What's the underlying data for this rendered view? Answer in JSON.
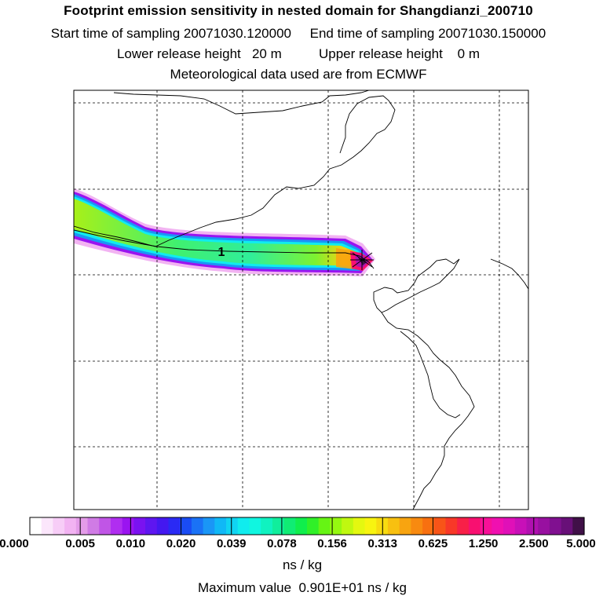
{
  "header": {
    "title": "Footprint emission sensitivity in nested domain for Shangdianzi_200710",
    "sampling_line": "Start time of sampling 20071030.120000     End time of sampling 20071030.150000",
    "release_line": "Lower release height   20 m          Upper release height    0 m",
    "met_line": "Meteorological data used are from ECMWF"
  },
  "map": {
    "release_marker_label": "1"
  },
  "colorbar": {
    "tick_labels": [
      "0.000",
      "0.005",
      "0.010",
      "0.020",
      "0.039",
      "0.078",
      "0.156",
      "0.313",
      "0.625",
      "1.250",
      "2.500",
      "5.000"
    ],
    "colors": [
      "#ffffff",
      "#fbe6fb",
      "#f7cdf7",
      "#f2b3f2",
      "#e49ce9",
      "#d07be5",
      "#c055e6",
      "#b02ef0",
      "#9a14f0",
      "#7a12f0",
      "#5e16f0",
      "#4418f0",
      "#2a2af4",
      "#1a4cf4",
      "#1a72f6",
      "#1a96f6",
      "#10b8f6",
      "#10d4f2",
      "#10ecee",
      "#10f6e0",
      "#10f2c0",
      "#10ee9c",
      "#10ec74",
      "#10ee4c",
      "#30f028",
      "#66f414",
      "#96f810",
      "#c0f810",
      "#e4f810",
      "#f8f410",
      "#f8dc10",
      "#f8c010",
      "#f8a410",
      "#f88a10",
      "#f87010",
      "#f85418",
      "#f83828",
      "#f82048",
      "#f81070",
      "#f81098",
      "#f010b0",
      "#e010b8",
      "#c810b8",
      "#b010b0",
      "#9810a0",
      "#801090",
      "#681078",
      "#401048"
    ],
    "unit": "ns / kg",
    "max_value_line": "Maximum value  0.901E+01 ns / kg"
  }
}
